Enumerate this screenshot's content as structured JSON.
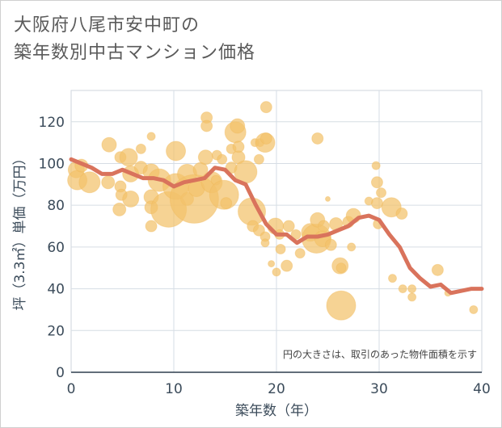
{
  "title_line1": "大阪府八尾市安中町の",
  "title_line2": "築年数別中古マンション価格",
  "chart_data": {
    "type": "scatter",
    "xlabel": "築年数（年）",
    "ylabel": "坪（3.3㎡）単価（万円）",
    "xlim": [
      0,
      40
    ],
    "ylim": [
      0,
      135
    ],
    "xticks": [
      "0",
      "10",
      "20",
      "30",
      "40"
    ],
    "yticks": [
      "0",
      "20",
      "40",
      "60",
      "80",
      "100",
      "120"
    ],
    "note": "円の大きさは、取引のあった物件面積を示す",
    "grid": true,
    "colors": {
      "bubble": "#f3c26b",
      "line": "#d9735c"
    },
    "bubbles": [
      {
        "x": 0.5,
        "y": 97,
        "s": 10
      },
      {
        "x": 0.6,
        "y": 92,
        "s": 12
      },
      {
        "x": 1,
        "y": 99,
        "s": 8
      },
      {
        "x": 1.8,
        "y": 91,
        "s": 13
      },
      {
        "x": 3.7,
        "y": 109,
        "s": 9
      },
      {
        "x": 3.6,
        "y": 91,
        "s": 8
      },
      {
        "x": 4.8,
        "y": 103,
        "s": 7
      },
      {
        "x": 4.8,
        "y": 89,
        "s": 7
      },
      {
        "x": 4.9,
        "y": 85,
        "s": 7
      },
      {
        "x": 4.7,
        "y": 78,
        "s": 8
      },
      {
        "x": 5.6,
        "y": 103,
        "s": 11
      },
      {
        "x": 5.8,
        "y": 95,
        "s": 10
      },
      {
        "x": 5.8,
        "y": 83,
        "s": 10
      },
      {
        "x": 6.8,
        "y": 98,
        "s": 8
      },
      {
        "x": 6.8,
        "y": 107,
        "s": 6
      },
      {
        "x": 7.8,
        "y": 113,
        "s": 5
      },
      {
        "x": 7.8,
        "y": 96,
        "s": 10
      },
      {
        "x": 7.8,
        "y": 84,
        "s": 9
      },
      {
        "x": 7.8,
        "y": 79,
        "s": 8
      },
      {
        "x": 7.8,
        "y": 70,
        "s": 7
      },
      {
        "x": 8.6,
        "y": 92,
        "s": 14
      },
      {
        "x": 9.5,
        "y": 78,
        "s": 22
      },
      {
        "x": 10.2,
        "y": 106,
        "s": 12
      },
      {
        "x": 10.2,
        "y": 89,
        "s": 16
      },
      {
        "x": 11.3,
        "y": 83,
        "s": 8
      },
      {
        "x": 11.3,
        "y": 95,
        "s": 12
      },
      {
        "x": 12,
        "y": 83,
        "s": 30
      },
      {
        "x": 12.2,
        "y": 88,
        "s": 10
      },
      {
        "x": 12.6,
        "y": 97,
        "s": 9
      },
      {
        "x": 13.2,
        "y": 122,
        "s": 7
      },
      {
        "x": 13.2,
        "y": 118,
        "s": 7
      },
      {
        "x": 13.1,
        "y": 103,
        "s": 9
      },
      {
        "x": 13.7,
        "y": 91,
        "s": 13
      },
      {
        "x": 14.2,
        "y": 104,
        "s": 6
      },
      {
        "x": 14.1,
        "y": 92,
        "s": 6
      },
      {
        "x": 14.7,
        "y": 102,
        "s": 6
      },
      {
        "x": 14.9,
        "y": 85,
        "s": 18
      },
      {
        "x": 15.1,
        "y": 81,
        "s": 7
      },
      {
        "x": 15.6,
        "y": 107,
        "s": 6
      },
      {
        "x": 15.6,
        "y": 98,
        "s": 7
      },
      {
        "x": 16,
        "y": 115,
        "s": 13
      },
      {
        "x": 16.2,
        "y": 118,
        "s": 9
      },
      {
        "x": 16.3,
        "y": 103,
        "s": 8
      },
      {
        "x": 16.3,
        "y": 108,
        "s": 7
      },
      {
        "x": 17,
        "y": 96,
        "s": 14
      },
      {
        "x": 17.6,
        "y": 77,
        "s": 17
      },
      {
        "x": 17.7,
        "y": 70,
        "s": 7
      },
      {
        "x": 17.9,
        "y": 110,
        "s": 5
      },
      {
        "x": 18.3,
        "y": 102,
        "s": 6
      },
      {
        "x": 18.3,
        "y": 68,
        "s": 7
      },
      {
        "x": 18.4,
        "y": 110,
        "s": 5
      },
      {
        "x": 18.9,
        "y": 110,
        "s": 12
      },
      {
        "x": 19,
        "y": 127,
        "s": 7
      },
      {
        "x": 19,
        "y": 112,
        "s": 7
      },
      {
        "x": 18.9,
        "y": 65,
        "s": 6
      },
      {
        "x": 18.9,
        "y": 62,
        "s": 5
      },
      {
        "x": 19.5,
        "y": 52,
        "s": 4
      },
      {
        "x": 20,
        "y": 48,
        "s": 5
      },
      {
        "x": 19.9,
        "y": 70,
        "s": 10
      },
      {
        "x": 20.3,
        "y": 66,
        "s": 6
      },
      {
        "x": 20.4,
        "y": 59,
        "s": 6
      },
      {
        "x": 21,
        "y": 51,
        "s": 7
      },
      {
        "x": 21.2,
        "y": 70,
        "s": 7
      },
      {
        "x": 21.9,
        "y": 66,
        "s": 6
      },
      {
        "x": 22.3,
        "y": 57,
        "s": 6
      },
      {
        "x": 23.3,
        "y": 67,
        "s": 11
      },
      {
        "x": 23.9,
        "y": 64,
        "s": 18
      },
      {
        "x": 24,
        "y": 112,
        "s": 7
      },
      {
        "x": 24,
        "y": 73,
        "s": 9
      },
      {
        "x": 24.5,
        "y": 64,
        "s": 10
      },
      {
        "x": 24.6,
        "y": 70,
        "s": 7
      },
      {
        "x": 25,
        "y": 83,
        "s": 3
      },
      {
        "x": 25.3,
        "y": 61,
        "s": 7
      },
      {
        "x": 25.8,
        "y": 71,
        "s": 8
      },
      {
        "x": 26.2,
        "y": 51,
        "s": 10
      },
      {
        "x": 26.3,
        "y": 50,
        "s": 6
      },
      {
        "x": 26.3,
        "y": 32,
        "s": 18
      },
      {
        "x": 27,
        "y": 72,
        "s": 7
      },
      {
        "x": 27.3,
        "y": 60,
        "s": 5
      },
      {
        "x": 27.5,
        "y": 75,
        "s": 9
      },
      {
        "x": 29,
        "y": 82,
        "s": 5
      },
      {
        "x": 29.7,
        "y": 99,
        "s": 5
      },
      {
        "x": 29.8,
        "y": 91,
        "s": 7
      },
      {
        "x": 29.8,
        "y": 81,
        "s": 7
      },
      {
        "x": 29.9,
        "y": 71,
        "s": 6
      },
      {
        "x": 30.2,
        "y": 86,
        "s": 6
      },
      {
        "x": 31.2,
        "y": 79,
        "s": 12
      },
      {
        "x": 31.3,
        "y": 45,
        "s": 5
      },
      {
        "x": 32.2,
        "y": 76,
        "s": 7
      },
      {
        "x": 32.3,
        "y": 40,
        "s": 5
      },
      {
        "x": 33.2,
        "y": 40,
        "s": 5
      },
      {
        "x": 33.2,
        "y": 36,
        "s": 5
      },
      {
        "x": 35.7,
        "y": 49,
        "s": 7
      },
      {
        "x": 36.7,
        "y": 38,
        "s": 4
      },
      {
        "x": 39.2,
        "y": 30,
        "s": 5
      }
    ],
    "trend": {
      "x": [
        0,
        1,
        2,
        3,
        4,
        5,
        6,
        7,
        8,
        9,
        10,
        11,
        12,
        13,
        14,
        15,
        16,
        17,
        18,
        19,
        20,
        21,
        22,
        23,
        24,
        25,
        26,
        27,
        28,
        29,
        30,
        31,
        32,
        33,
        34,
        35,
        36,
        37,
        38,
        39,
        40
      ],
      "y": [
        102,
        100,
        98,
        95,
        95,
        97,
        95,
        93,
        93,
        92,
        89,
        91,
        92,
        93,
        98,
        97,
        92,
        90,
        80,
        71,
        66,
        66,
        62,
        65,
        65,
        66,
        68,
        70,
        74,
        75,
        73,
        66,
        60,
        50,
        45,
        41,
        42,
        38,
        39,
        40,
        40
      ]
    }
  }
}
